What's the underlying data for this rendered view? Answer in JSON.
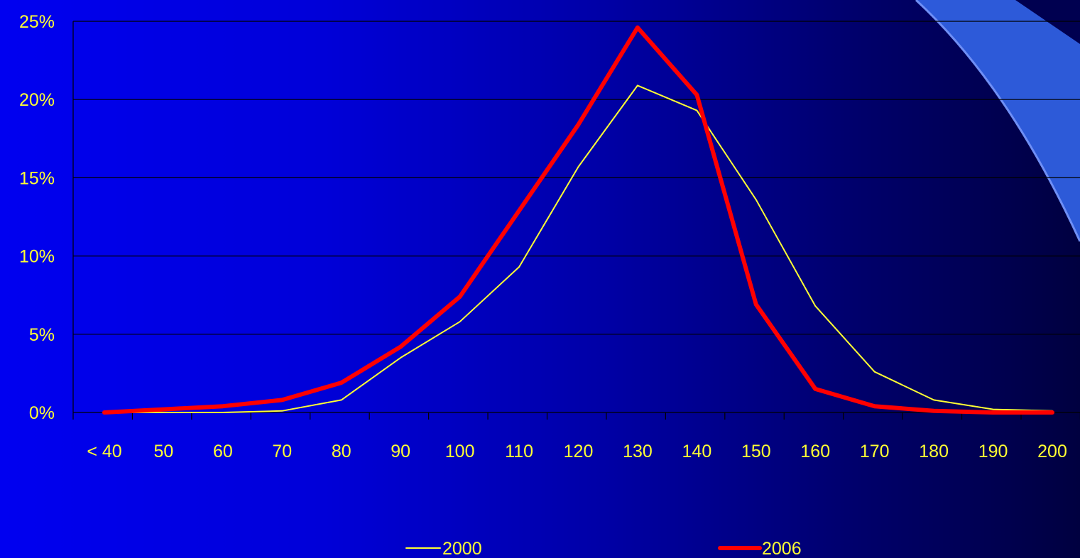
{
  "colors": {
    "background_start": "#0000f0",
    "background_end": "#000040",
    "text": "#ffff33",
    "gridline": "#000000",
    "accent_shape": "#2f5fe0"
  },
  "chart_data": {
    "type": "line",
    "title": "",
    "xlabel": "",
    "ylabel": "",
    "categories": [
      "< 40",
      "50",
      "60",
      "70",
      "80",
      "90",
      "100",
      "110",
      "120",
      "130",
      "140",
      "150",
      "160",
      "170",
      "180",
      "190",
      "200"
    ],
    "y_tick_labels": [
      "0%",
      "5%",
      "10%",
      "15%",
      "20%",
      "25%"
    ],
    "ylim": [
      0,
      25
    ],
    "y_unit": "%",
    "grid": true,
    "legend_position": "bottom",
    "series": [
      {
        "name": "2000",
        "color": "#ffff33",
        "values": [
          0,
          0,
          0,
          0.1,
          0.8,
          3.5,
          5.8,
          9.3,
          15.7,
          20.9,
          19.3,
          13.6,
          6.8,
          2.6,
          0.8,
          0.2,
          0.1
        ]
      },
      {
        "name": "2006",
        "color": "#ff0000",
        "values": [
          0,
          0.2,
          0.4,
          0.8,
          1.9,
          4.2,
          7.4,
          12.9,
          18.4,
          24.6,
          20.3,
          6.9,
          1.5,
          0.4,
          0.1,
          0,
          0
        ]
      }
    ]
  }
}
